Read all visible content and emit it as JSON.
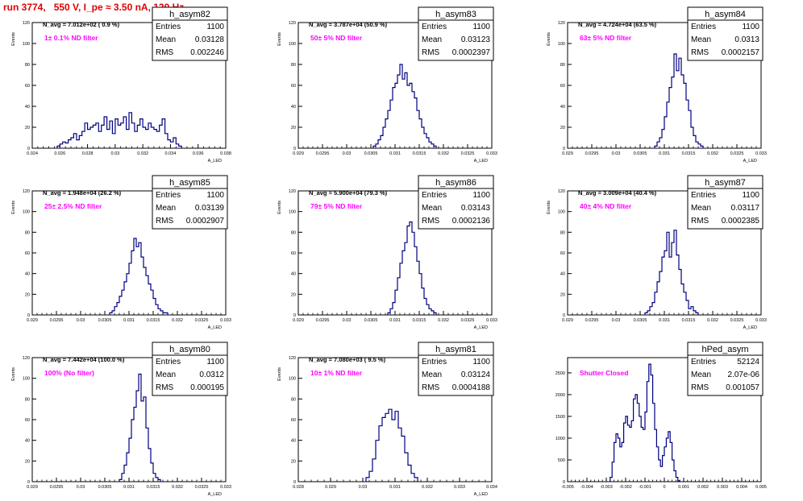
{
  "canvas_title": "run 3774,   550 V, I_pe ≈ 3.50 nA, 120 Hz",
  "colors": {
    "title": "#e00000",
    "histogram": "#000080",
    "filter_label": "#ff00ff",
    "grid": "#000000"
  },
  "chart_data": [
    {
      "type": "histogram",
      "name": "h_asym82",
      "navg": "N_avg = 7.012e+02 ( 0.9 %)",
      "filter": "1± 0.1% ND filter",
      "stats": [
        [
          "Entries",
          "1100"
        ],
        [
          "Mean",
          "0.03128"
        ],
        [
          "RMS",
          "0.002246"
        ]
      ],
      "ylabel": "Events",
      "xlabel": "A_LED",
      "xlim": [
        0.024,
        0.038
      ],
      "ylim": [
        0,
        120
      ],
      "xticks": [
        "0.024",
        "0.026",
        "0.028",
        "0.03",
        "0.032",
        "0.034",
        "0.036",
        "0.038"
      ],
      "yticks": [
        "0",
        "20",
        "40",
        "60",
        "80",
        "100",
        "120"
      ],
      "bins": {
        "x0": 0.0258,
        "dx": 0.0002,
        "values": [
          2,
          4,
          6,
          5,
          8,
          10,
          14,
          8,
          12,
          16,
          24,
          18,
          20,
          22,
          24,
          16,
          22,
          30,
          18,
          26,
          14,
          28,
          22,
          24,
          30,
          18,
          34,
          24,
          16,
          22,
          28,
          20,
          18,
          24,
          20,
          18,
          16,
          22,
          28,
          14,
          8,
          6,
          10,
          4,
          2
        ]
      }
    },
    {
      "type": "histogram",
      "name": "h_asym83",
      "navg": "N_avg = 3.787e+04 (50.9 %)",
      "filter": "50± 5% ND filter",
      "stats": [
        [
          "Entries",
          "1100"
        ],
        [
          "Mean",
          "0.03123"
        ],
        [
          "RMS",
          "0.0002397"
        ]
      ],
      "ylabel": "Events",
      "xlabel": "A_LED",
      "xlim": [
        0.029,
        0.033
      ],
      "ylim": [
        0,
        120
      ],
      "xticks": [
        "0.029",
        "0.0295",
        "0.03",
        "0.0305",
        "0.031",
        "0.0315",
        "0.032",
        "0.0325",
        "0.033"
      ],
      "yticks": [
        "0",
        "20",
        "40",
        "60",
        "80",
        "100",
        "120"
      ],
      "bins": {
        "x0": 0.03055,
        "dx": 5e-05,
        "values": [
          2,
          4,
          8,
          12,
          20,
          28,
          36,
          46,
          58,
          62,
          70,
          80,
          66,
          72,
          60,
          62,
          54,
          48,
          36,
          28,
          20,
          14,
          10,
          6,
          4,
          2
        ]
      }
    },
    {
      "type": "histogram",
      "name": "h_asym84",
      "navg": "N_avg = 4.724e+04 (63.5 %)",
      "filter": "63± 5% ND filter",
      "stats": [
        [
          "Entries",
          "1100"
        ],
        [
          "Mean",
          "0.0313"
        ],
        [
          "RMS",
          "0.0002157"
        ]
      ],
      "ylabel": "Events",
      "xlabel": "A_LED",
      "xlim": [
        0.029,
        0.033
      ],
      "ylim": [
        0,
        120
      ],
      "xticks": [
        "0.029",
        "0.0295",
        "0.03",
        "0.0305",
        "0.031",
        "0.0315",
        "0.032",
        "0.0325",
        "0.033"
      ],
      "yticks": [
        "0",
        "20",
        "40",
        "60",
        "80",
        "100",
        "120"
      ],
      "bins": {
        "x0": 0.0308,
        "dx": 5e-05,
        "values": [
          2,
          6,
          10,
          18,
          30,
          44,
          58,
          68,
          90,
          74,
          86,
          70,
          62,
          46,
          36,
          20,
          12,
          6,
          4,
          2
        ]
      }
    },
    {
      "type": "histogram",
      "name": "h_asym85",
      "navg": "N_avg = 1.948e+04 (26.2 %)",
      "filter": "25± 2.5% ND filter",
      "stats": [
        [
          "Entries",
          "1100"
        ],
        [
          "Mean",
          "0.03139"
        ],
        [
          "RMS",
          "0.0002907"
        ]
      ],
      "ylabel": "Events",
      "xlabel": "A_LED",
      "xlim": [
        0.029,
        0.033
      ],
      "ylim": [
        0,
        120
      ],
      "xticks": [
        "0.029",
        "0.0295",
        "0.03",
        "0.0305",
        "0.031",
        "0.0315",
        "0.032",
        "0.0325",
        "0.033"
      ],
      "yticks": [
        "0",
        "20",
        "40",
        "60",
        "80",
        "100",
        "120"
      ],
      "bins": {
        "x0": 0.0306,
        "dx": 5e-05,
        "values": [
          2,
          4,
          8,
          12,
          18,
          24,
          32,
          40,
          50,
          62,
          74,
          66,
          70,
          56,
          46,
          38,
          30,
          24,
          16,
          10,
          6,
          4,
          2,
          2
        ]
      }
    },
    {
      "type": "histogram",
      "name": "h_asym86",
      "navg": "N_avg = 5.900e+04 (79.3 %)",
      "filter": "79± 5% ND filter",
      "stats": [
        [
          "Entries",
          "1100"
        ],
        [
          "Mean",
          "0.03143"
        ],
        [
          "RMS",
          "0.0002136"
        ]
      ],
      "ylabel": "Events",
      "xlabel": "A_LED",
      "xlim": [
        0.029,
        0.033
      ],
      "ylim": [
        0,
        120
      ],
      "xticks": [
        "0.029",
        "0.0295",
        "0.03",
        "0.0305",
        "0.031",
        "0.0315",
        "0.032",
        "0.0325",
        "0.033"
      ],
      "yticks": [
        "0",
        "20",
        "40",
        "60",
        "80",
        "100",
        "120"
      ],
      "bins": {
        "x0": 0.03085,
        "dx": 5e-05,
        "values": [
          2,
          6,
          12,
          24,
          36,
          50,
          62,
          70,
          86,
          90,
          80,
          66,
          52,
          40,
          26,
          16,
          10,
          6,
          4,
          2
        ]
      }
    },
    {
      "type": "histogram",
      "name": "h_asym87",
      "navg": "N_avg = 3.009e+04 (40.4 %)",
      "filter": "40± 4% ND filter",
      "stats": [
        [
          "Entries",
          "1100"
        ],
        [
          "Mean",
          "0.03117"
        ],
        [
          "RMS",
          "0.0002385"
        ]
      ],
      "ylabel": "Events",
      "xlabel": "A_LED",
      "xlim": [
        0.029,
        0.033
      ],
      "ylim": [
        0,
        120
      ],
      "xticks": [
        "0.029",
        "0.0295",
        "0.03",
        "0.0305",
        "0.031",
        "0.0315",
        "0.032",
        "0.0325",
        "0.033"
      ],
      "yticks": [
        "0",
        "20",
        "40",
        "60",
        "80",
        "100",
        "120"
      ],
      "bins": {
        "x0": 0.0306,
        "dx": 5e-05,
        "values": [
          2,
          4,
          8,
          12,
          22,
          32,
          42,
          56,
          62,
          80,
          56,
          70,
          82,
          58,
          44,
          30,
          22,
          14,
          6,
          8,
          4,
          2
        ]
      }
    },
    {
      "type": "histogram",
      "name": "h_asym80",
      "navg": "N_avg = 7.442e+04 (100.0 %)",
      "filter": "100% (No filter)",
      "stats": [
        [
          "Entries",
          "1100"
        ],
        [
          "Mean",
          "0.0312"
        ],
        [
          "RMS",
          "0.000195"
        ]
      ],
      "ylabel": "Events",
      "xlabel": "A_LED",
      "xlim": [
        0.029,
        0.033
      ],
      "ylim": [
        0,
        120
      ],
      "xticks": [
        "0.029",
        "0.0295",
        "0.03",
        "0.0305",
        "0.031",
        "0.0315",
        "0.032",
        "0.0325",
        "0.033"
      ],
      "yticks": [
        "0",
        "20",
        "40",
        "60",
        "80",
        "100",
        "120"
      ],
      "bins": {
        "x0": 0.0308,
        "dx": 5e-05,
        "values": [
          2,
          8,
          16,
          28,
          42,
          60,
          72,
          88,
          104,
          78,
          82,
          52,
          32,
          18,
          8,
          4,
          2
        ]
      }
    },
    {
      "type": "histogram",
      "name": "h_asym81",
      "navg": "N_avg = 7.080e+03 ( 9.5 %)",
      "filter": "10± 1% ND filter",
      "stats": [
        [
          "Entries",
          "1100"
        ],
        [
          "Mean",
          "0.03124"
        ],
        [
          "RMS",
          "0.0004188"
        ]
      ],
      "ylabel": "Events",
      "xlabel": "A_LED",
      "xlim": [
        0.028,
        0.034
      ],
      "ylim": [
        0,
        120
      ],
      "xticks": [
        "0.028",
        "0.029",
        "0.03",
        "0.031",
        "0.032",
        "0.033",
        "0.034"
      ],
      "yticks": [
        "0",
        "20",
        "40",
        "60",
        "80",
        "100",
        "120"
      ],
      "bins": {
        "x0": 0.0301,
        "dx": 0.0001,
        "values": [
          4,
          10,
          22,
          40,
          54,
          62,
          66,
          70,
          60,
          68,
          52,
          44,
          28,
          16,
          8,
          4
        ]
      }
    },
    {
      "type": "histogram",
      "name": "hPed_asym",
      "navg": "",
      "filter": "Shutter Closed",
      "stats": [
        [
          "Entries",
          "52124"
        ],
        [
          "Mean",
          "2.07e-06"
        ],
        [
          "RMS",
          "0.001057"
        ]
      ],
      "ylabel": "",
      "xlabel": "",
      "xlim": [
        -0.005,
        0.005
      ],
      "ylim": [
        0,
        2850
      ],
      "xticks": [
        "-0.005",
        "-0.004",
        "-0.003",
        "-0.002",
        "-0.001",
        "0",
        "0.001",
        "0.002",
        "0.003",
        "0.004",
        "0.005"
      ],
      "yticks": [
        "0",
        "500",
        "1000",
        "1500",
        "2000",
        "2500"
      ],
      "bins": {
        "x0": -0.0028,
        "dx": 0.0001,
        "values": [
          100,
          450,
          900,
          1100,
          1000,
          800,
          900,
          1350,
          1500,
          1300,
          1250,
          1400,
          1900,
          2000,
          1800,
          1500,
          1250,
          1200,
          1600,
          2300,
          2700,
          2450,
          1800,
          1200,
          800,
          500,
          350,
          600,
          800,
          1000,
          1150,
          900,
          500,
          250,
          100,
          20
        ]
      }
    }
  ]
}
